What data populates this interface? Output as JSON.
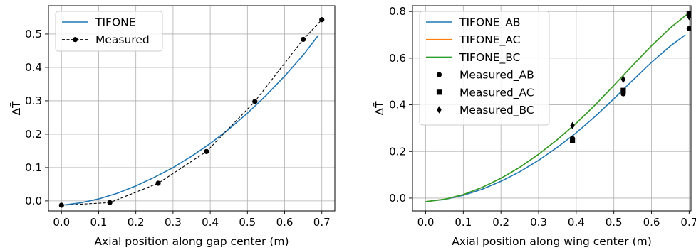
{
  "chart_data": [
    {
      "type": "line",
      "xlabel": "Axial position along gap center (m)",
      "ylabel": "ΔT̃",
      "xlim": [
        -0.035,
        0.735
      ],
      "ylim": [
        -0.03,
        0.585
      ],
      "xticks": [
        "0.0",
        "0.1",
        "0.2",
        "0.3",
        "0.4",
        "0.5",
        "0.6",
        "0.7"
      ],
      "yticks": [
        "0.0",
        "0.1",
        "0.2",
        "0.3",
        "0.4",
        "0.5"
      ],
      "grid": true,
      "legend_position": "top-left",
      "series": [
        {
          "name": "TIFONE",
          "color": "#1f77b4",
          "style": "solid",
          "x": [
            0.0,
            0.05,
            0.1,
            0.15,
            0.2,
            0.25,
            0.3,
            0.35,
            0.4,
            0.45,
            0.5,
            0.55,
            0.6,
            0.65,
            0.69
          ],
          "y": [
            -0.013,
            -0.006,
            0.006,
            0.023,
            0.045,
            0.071,
            0.1,
            0.134,
            0.172,
            0.215,
            0.263,
            0.316,
            0.374,
            0.437,
            0.495
          ]
        },
        {
          "name": "Measured",
          "color": "#000000",
          "style": "dashed",
          "marker": "circle",
          "x": [
            0.0,
            0.13,
            0.26,
            0.39,
            0.52,
            0.65,
            0.7
          ],
          "y": [
            -0.013,
            -0.005,
            0.053,
            0.148,
            0.298,
            0.484,
            0.543
          ]
        }
      ]
    },
    {
      "type": "line",
      "xlabel": "Axial position along wing center (m)",
      "ylabel": "ΔT̃",
      "xlim": [
        -0.035,
        0.705
      ],
      "ylim": [
        -0.055,
        0.825
      ],
      "xticks": [
        "0.0",
        "0.1",
        "0.2",
        "0.3",
        "0.4",
        "0.5",
        "0.6",
        "0.7"
      ],
      "yticks": [
        "0.0",
        "0.2",
        "0.4",
        "0.6",
        "0.8"
      ],
      "grid": true,
      "legend_position": "top-left",
      "series": [
        {
          "name": "TIFONE_AB",
          "color": "#1f77b4",
          "style": "solid",
          "x": [
            0.0,
            0.05,
            0.1,
            0.15,
            0.2,
            0.25,
            0.3,
            0.35,
            0.4,
            0.45,
            0.5,
            0.55,
            0.6,
            0.65,
            0.69
          ],
          "y": [
            -0.015,
            -0.006,
            0.012,
            0.038,
            0.072,
            0.113,
            0.162,
            0.218,
            0.28,
            0.35,
            0.426,
            0.505,
            0.582,
            0.652,
            0.7
          ]
        },
        {
          "name": "TIFONE_AC",
          "color": "#ff7f0e",
          "style": "solid",
          "x": [
            0.0,
            0.05,
            0.1,
            0.15,
            0.2,
            0.25,
            0.3,
            0.35,
            0.4,
            0.45,
            0.5,
            0.55,
            0.6,
            0.65,
            0.7
          ],
          "y": [
            -0.015,
            -0.005,
            0.015,
            0.046,
            0.085,
            0.132,
            0.188,
            0.251,
            0.321,
            0.399,
            0.483,
            0.569,
            0.653,
            0.73,
            0.795
          ]
        },
        {
          "name": "TIFONE_BC",
          "color": "#2ca02c",
          "style": "solid",
          "x": [
            0.0,
            0.05,
            0.1,
            0.15,
            0.2,
            0.25,
            0.3,
            0.35,
            0.4,
            0.45,
            0.5,
            0.55,
            0.6,
            0.65,
            0.7
          ],
          "y": [
            -0.015,
            -0.005,
            0.015,
            0.046,
            0.085,
            0.132,
            0.188,
            0.251,
            0.321,
            0.399,
            0.483,
            0.569,
            0.653,
            0.73,
            0.795
          ]
        },
        {
          "name": "Measured_AB",
          "color": "#000000",
          "marker": "circle",
          "x": [
            0.39,
            0.525,
            0.7
          ],
          "y": [
            0.255,
            0.447,
            0.727
          ]
        },
        {
          "name": "Measured_AC",
          "color": "#000000",
          "marker": "square",
          "x": [
            0.39,
            0.525,
            0.7
          ],
          "y": [
            0.248,
            0.462,
            0.792
          ]
        },
        {
          "name": "Measured_BC",
          "color": "#000000",
          "marker": "diamond",
          "x": [
            0.39,
            0.525,
            0.7
          ],
          "y": [
            0.311,
            0.509,
            0.778
          ]
        }
      ]
    }
  ]
}
